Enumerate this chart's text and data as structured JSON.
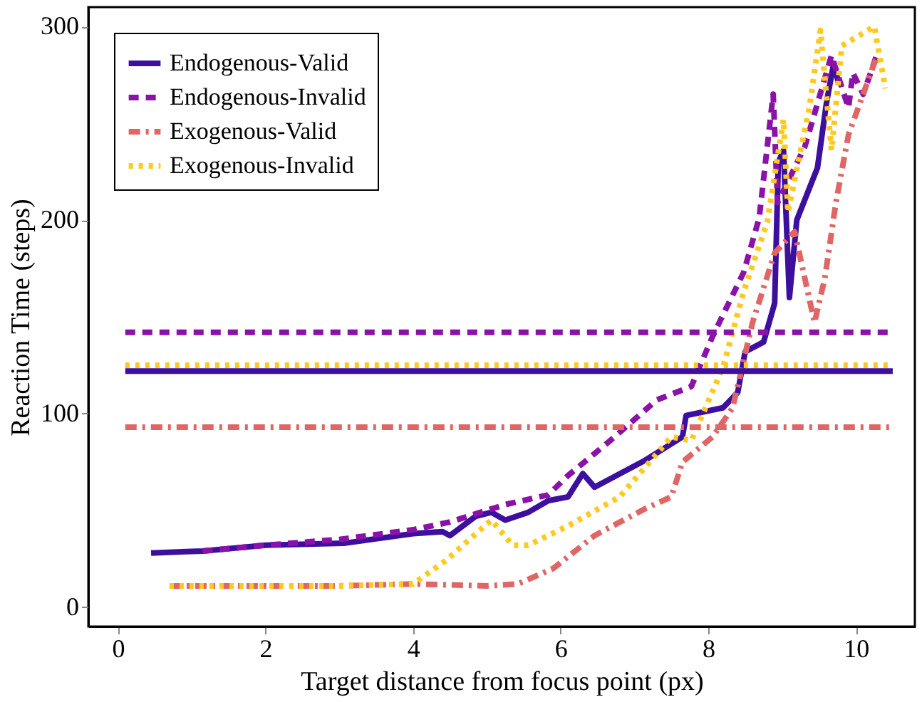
{
  "chart_data": {
    "type": "line",
    "xlabel": "Target distance from focus point (px)",
    "ylabel": "Reaction Time (steps)",
    "xlim": [
      -0.4,
      10.8
    ],
    "ylim": [
      -10,
      310
    ],
    "xticks": [
      0,
      2,
      4,
      6,
      8,
      10
    ],
    "yticks": [
      0,
      100,
      200,
      300
    ],
    "grid": false,
    "legend": "top left",
    "marker": "none",
    "series": [
      {
        "name": "Endogenous-Valid",
        "color": "#3d0f9e",
        "line_style": "solid",
        "x": [
          0.45,
          1.15,
          2.0,
          3.06,
          4.0,
          4.4,
          4.5,
          4.85,
          5.06,
          5.25,
          5.56,
          5.83,
          6.1,
          6.3,
          6.46,
          7.15,
          7.65,
          7.7,
          8.2,
          8.4,
          8.5,
          8.75,
          8.9,
          8.95,
          9.02,
          9.1,
          9.2,
          9.48,
          9.6,
          9.7,
          9.77
        ],
        "values": [
          28,
          29,
          32,
          33,
          38,
          39,
          37,
          47,
          49,
          45,
          49,
          55,
          57,
          69,
          62,
          76,
          88,
          99,
          103,
          111,
          132,
          137,
          157,
          230,
          236,
          160,
          200,
          227,
          260,
          281,
          270
        ]
      },
      {
        "name": "Endogenous-Invalid",
        "color": "#8b12a8",
        "line_style": "dashed",
        "x": [
          1.15,
          2.0,
          3.0,
          4.0,
          4.5,
          5.25,
          5.83,
          6.1,
          6.67,
          7.3,
          7.77,
          8.06,
          8.48,
          8.69,
          8.88,
          8.94,
          9.31,
          9.67,
          9.9,
          9.96,
          10.1,
          10.3
        ],
        "values": [
          29,
          32,
          35,
          40,
          44,
          53,
          58,
          68,
          86,
          107,
          114,
          140,
          173,
          201,
          265,
          209,
          238,
          285,
          258,
          276,
          265,
          287
        ]
      },
      {
        "name": "Exogenous-Valid",
        "color": "#e06666",
        "line_style": "dashdot",
        "x": [
          0.7,
          2.0,
          3.0,
          4.0,
          5.0,
          5.42,
          5.9,
          6.46,
          7.15,
          7.5,
          7.65,
          8.06,
          8.33,
          8.6,
          8.9,
          9.17,
          9.44,
          9.58,
          9.73,
          9.9,
          10.25,
          10.3
        ],
        "values": [
          11,
          11,
          11,
          12,
          11,
          12,
          20,
          37,
          51,
          57,
          75,
          88,
          103,
          147,
          183,
          194,
          147,
          170,
          209,
          244,
          281,
          285
        ]
      },
      {
        "name": "Exogenous-Invalid",
        "color": "#ffc91f",
        "line_style": "dotted",
        "x": [
          0.7,
          2.0,
          3.0,
          4.0,
          4.44,
          5.06,
          5.35,
          5.56,
          6.1,
          6.8,
          7.5,
          7.77,
          8.2,
          8.48,
          8.8,
          9.02,
          9.08,
          9.37,
          9.52,
          9.67,
          9.81,
          10.25,
          10.4
        ],
        "values": [
          11,
          11,
          11,
          12,
          24,
          45,
          32,
          32,
          42,
          57,
          88,
          86,
          124,
          163,
          199,
          252,
          204,
          258,
          298,
          236,
          290,
          300,
          268
        ]
      },
      {
        "color": "#3d0f9e",
        "line_style": "solid",
        "x": [
          0.1,
          10.5
        ],
        "values": [
          122,
          122
        ]
      },
      {
        "color": "#8b12a8",
        "line_style": "dashed",
        "x": [
          0.1,
          10.5
        ],
        "values": [
          142,
          142
        ]
      },
      {
        "color": "#e06666",
        "line_style": "dashdot",
        "x": [
          0.1,
          10.5
        ],
        "values": [
          93,
          93
        ]
      },
      {
        "color": "#ffc91f",
        "line_style": "dotted",
        "x": [
          0.1,
          10.5
        ],
        "values": [
          125,
          125
        ]
      }
    ]
  }
}
